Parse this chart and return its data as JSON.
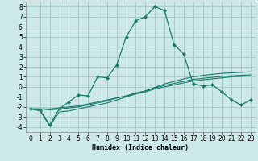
{
  "xlabel": "Humidex (Indice chaleur)",
  "bg_color": "#cce8e8",
  "grid_color": "#aacccc",
  "line_color": "#1a7a6a",
  "x_values": [
    0,
    1,
    2,
    3,
    4,
    5,
    6,
    7,
    8,
    9,
    10,
    11,
    12,
    13,
    14,
    15,
    16,
    17,
    18,
    19,
    20,
    21,
    22,
    23
  ],
  "main_line": [
    -2.2,
    -2.3,
    -3.8,
    -2.2,
    -1.5,
    -0.8,
    -0.9,
    1.0,
    0.9,
    2.2,
    5.0,
    6.6,
    7.0,
    8.0,
    7.6,
    4.2,
    3.3,
    0.3,
    0.1,
    0.2,
    -0.5,
    -1.3,
    -1.8,
    -1.3
  ],
  "line2": [
    -2.2,
    -2.2,
    -2.2,
    -2.1,
    -2.0,
    -1.9,
    -1.7,
    -1.5,
    -1.3,
    -1.1,
    -0.9,
    -0.7,
    -0.5,
    -0.2,
    0.0,
    0.2,
    0.4,
    0.6,
    0.7,
    0.8,
    0.9,
    1.0,
    1.05,
    1.1
  ],
  "line3": [
    -2.2,
    -2.2,
    -2.3,
    -2.2,
    -2.1,
    -2.0,
    -1.8,
    -1.6,
    -1.4,
    -1.1,
    -0.9,
    -0.6,
    -0.4,
    -0.1,
    0.15,
    0.35,
    0.55,
    0.75,
    0.85,
    0.95,
    1.05,
    1.1,
    1.15,
    1.2
  ],
  "line4": [
    -2.2,
    -2.4,
    -3.9,
    -2.5,
    -2.4,
    -2.2,
    -2.0,
    -1.8,
    -1.6,
    -1.3,
    -1.0,
    -0.7,
    -0.4,
    -0.05,
    0.3,
    0.55,
    0.8,
    1.0,
    1.15,
    1.25,
    1.35,
    1.4,
    1.45,
    1.5
  ],
  "ylim": [
    -4.5,
    8.5
  ],
  "yticks": [
    -4,
    -3,
    -2,
    -1,
    0,
    1,
    2,
    3,
    4,
    5,
    6,
    7,
    8
  ],
  "xticks": [
    0,
    1,
    2,
    3,
    4,
    5,
    6,
    7,
    8,
    9,
    10,
    11,
    12,
    13,
    14,
    15,
    16,
    17,
    18,
    19,
    20,
    21,
    22,
    23
  ],
  "xlabel_fontsize": 6,
  "tick_fontsize": 5.5
}
